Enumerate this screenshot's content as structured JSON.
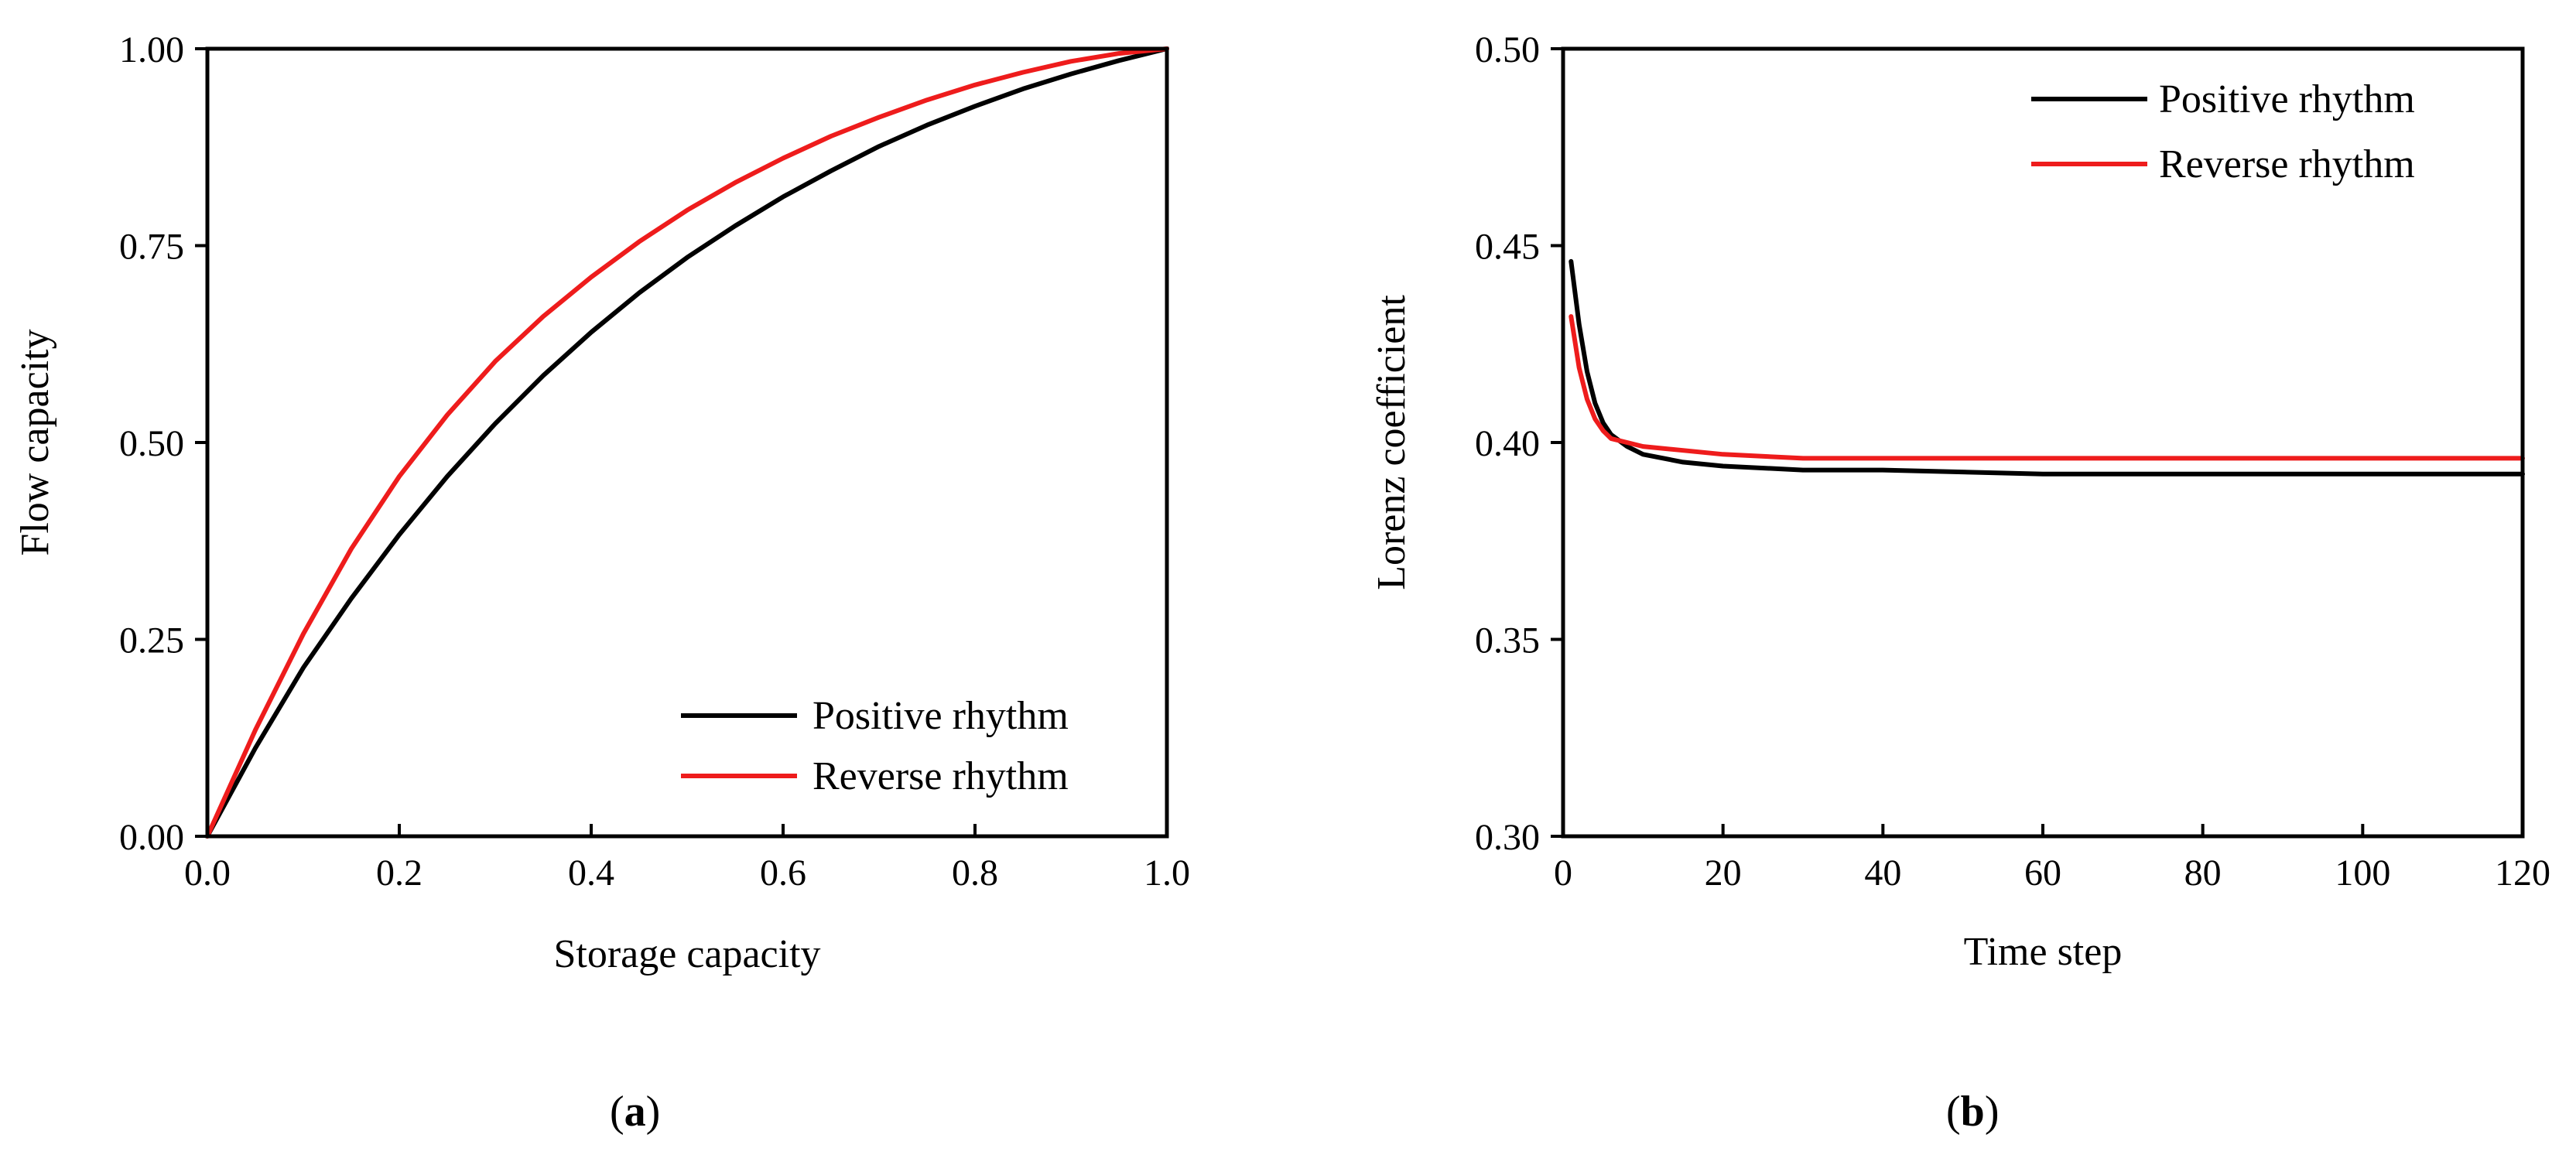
{
  "chart_data": [
    {
      "type": "line",
      "panel_label": "a",
      "title": "",
      "xlabel": "Storage capacity",
      "ylabel": "Flow capacity",
      "xlim": [
        0,
        1
      ],
      "ylim": [
        0,
        1
      ],
      "x_ticks": [
        0.0,
        0.2,
        0.4,
        0.6,
        0.8,
        1.0
      ],
      "x_tick_labels": [
        "0.0",
        "0.2",
        "0.4",
        "0.6",
        "0.8",
        "1.0"
      ],
      "y_ticks": [
        0.0,
        0.25,
        0.5,
        0.75,
        1.0
      ],
      "y_tick_labels": [
        "0.00",
        "0.25",
        "0.50",
        "0.75",
        "1.00"
      ],
      "grid": false,
      "legend_position": "bottom-right",
      "series": [
        {
          "name": "Positive rhythm",
          "color": "#000000",
          "x": [
            0,
            0.05,
            0.1,
            0.15,
            0.2,
            0.25,
            0.3,
            0.35,
            0.4,
            0.45,
            0.5,
            0.55,
            0.6,
            0.65,
            0.7,
            0.75,
            0.8,
            0.85,
            0.9,
            0.95,
            1.0
          ],
          "y": [
            0,
            0.112,
            0.214,
            0.302,
            0.383,
            0.457,
            0.524,
            0.585,
            0.64,
            0.69,
            0.735,
            0.775,
            0.812,
            0.845,
            0.876,
            0.903,
            0.927,
            0.949,
            0.968,
            0.985,
            1.0
          ]
        },
        {
          "name": "Reverse rhythm",
          "color": "#ee1c1c",
          "x": [
            0,
            0.05,
            0.1,
            0.15,
            0.2,
            0.25,
            0.3,
            0.35,
            0.4,
            0.45,
            0.5,
            0.55,
            0.6,
            0.65,
            0.7,
            0.75,
            0.8,
            0.85,
            0.9,
            0.95,
            1.0
          ],
          "y": [
            0,
            0.135,
            0.257,
            0.365,
            0.457,
            0.535,
            0.603,
            0.66,
            0.71,
            0.755,
            0.795,
            0.83,
            0.861,
            0.889,
            0.913,
            0.935,
            0.954,
            0.97,
            0.984,
            0.994,
            1.0
          ]
        }
      ]
    },
    {
      "type": "line",
      "panel_label": "b",
      "title": "",
      "xlabel": "Time step",
      "ylabel": "Lorenz coefficient",
      "xlim": [
        0,
        120
      ],
      "ylim": [
        0.3,
        0.5
      ],
      "x_ticks": [
        0,
        20,
        40,
        60,
        80,
        100,
        120
      ],
      "x_tick_labels": [
        "0",
        "20",
        "40",
        "60",
        "80",
        "100",
        "120"
      ],
      "y_ticks": [
        0.3,
        0.35,
        0.4,
        0.45,
        0.5
      ],
      "y_tick_labels": [
        "0.30",
        "0.35",
        "0.40",
        "0.45",
        "0.50"
      ],
      "grid": false,
      "legend_position": "top-right",
      "series": [
        {
          "name": "Positive rhythm",
          "color": "#000000",
          "x": [
            1,
            2,
            3,
            4,
            5,
            6,
            8,
            10,
            15,
            20,
            30,
            40,
            60,
            80,
            100,
            120
          ],
          "y": [
            0.446,
            0.43,
            0.418,
            0.41,
            0.405,
            0.402,
            0.399,
            0.397,
            0.395,
            0.394,
            0.393,
            0.393,
            0.392,
            0.392,
            0.392,
            0.392
          ]
        },
        {
          "name": "Reverse rhythm",
          "color": "#ee1c1c",
          "x": [
            1,
            2,
            3,
            4,
            5,
            6,
            8,
            10,
            15,
            20,
            30,
            40,
            60,
            80,
            100,
            120
          ],
          "y": [
            0.432,
            0.419,
            0.411,
            0.406,
            0.403,
            0.401,
            0.4,
            0.399,
            0.398,
            0.397,
            0.396,
            0.396,
            0.396,
            0.396,
            0.396,
            0.396
          ]
        }
      ]
    }
  ]
}
